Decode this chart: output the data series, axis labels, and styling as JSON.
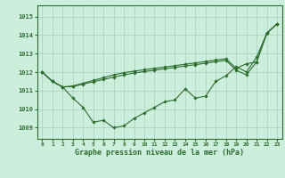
{
  "title": "Graphe pression niveau de la mer (hPa)",
  "background_color": "#cceedd",
  "grid_color": "#aaccbb",
  "line_color": "#2d6e2d",
  "xlim": [
    -0.5,
    23.5
  ],
  "ylim": [
    1008.4,
    1015.6
  ],
  "yticks": [
    1009,
    1010,
    1011,
    1012,
    1013,
    1014,
    1015
  ],
  "xticks": [
    0,
    1,
    2,
    3,
    4,
    5,
    6,
    7,
    8,
    9,
    10,
    11,
    12,
    13,
    14,
    15,
    16,
    17,
    18,
    19,
    20,
    21,
    22,
    23
  ],
  "series": [
    [
      1012.0,
      1011.5,
      1011.2,
      1010.6,
      1010.1,
      1009.3,
      1009.4,
      1009.0,
      1009.1,
      1009.5,
      1009.8,
      1010.1,
      1010.4,
      1010.5,
      1011.1,
      1010.6,
      1010.7,
      1011.5,
      1011.8,
      1012.3,
      1012.0,
      1012.8,
      1014.1,
      1014.6
    ],
    [
      1012.0,
      1011.5,
      1011.2,
      1011.25,
      1011.4,
      1011.55,
      1011.7,
      1011.85,
      1011.97,
      1012.05,
      1012.13,
      1012.2,
      1012.27,
      1012.35,
      1012.42,
      1012.5,
      1012.57,
      1012.65,
      1012.72,
      1012.2,
      1012.45,
      1012.55,
      1014.1,
      1014.6
    ],
    [
      1012.0,
      1011.5,
      1011.2,
      1011.22,
      1011.35,
      1011.48,
      1011.6,
      1011.73,
      1011.85,
      1011.95,
      1012.03,
      1012.1,
      1012.18,
      1012.25,
      1012.33,
      1012.4,
      1012.48,
      1012.56,
      1012.63,
      1012.1,
      1011.85,
      1012.55,
      1014.1,
      1014.6
    ]
  ]
}
